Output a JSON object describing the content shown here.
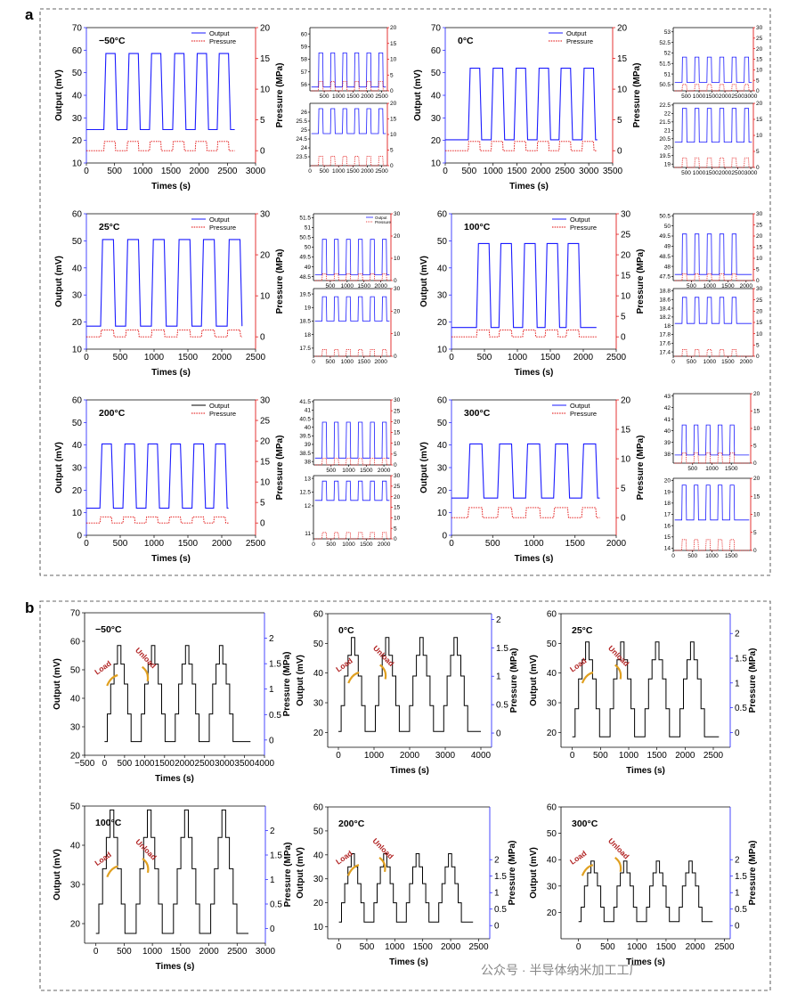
{
  "figure": {
    "panel_labels": [
      "a",
      "b"
    ],
    "watermark": "公众号 · 半导体纳米加工工厂"
  },
  "chart_data": [
    {
      "id": "a-n50",
      "type": "line",
      "title": "−50°C",
      "xlabel": "Times (s)",
      "ylabel": "Output (mV)",
      "y2label": "Pressure (MPa)",
      "xlim": [
        0,
        3000
      ],
      "xticks": [
        0,
        500,
        1000,
        1500,
        2000,
        2500,
        3000
      ],
      "ylim": [
        10,
        70
      ],
      "yticks": [
        10,
        20,
        30,
        40,
        50,
        60,
        70
      ],
      "y2lim": [
        -2,
        20
      ],
      "y2ticks": [
        0,
        5,
        10,
        15,
        20
      ],
      "legend": [
        "Output",
        "Pressure"
      ],
      "output_low": 24.8,
      "output_high": 58.5,
      "pressure_high": 1.5,
      "pulses_start": [
        310,
        720,
        1120,
        1530,
        1930,
        2320
      ],
      "pulse_width": 200,
      "series_end": 2630
    },
    {
      "id": "a-0",
      "type": "line",
      "title": "0°C",
      "xlabel": "Times (s)",
      "ylabel": "Output (mV)",
      "y2label": "Pressure (MPa)",
      "xlim": [
        0,
        3500
      ],
      "xticks": [
        0,
        500,
        1000,
        1500,
        2000,
        2500,
        3000,
        3500
      ],
      "ylim": [
        10,
        70
      ],
      "yticks": [
        10,
        20,
        30,
        40,
        50,
        60,
        70
      ],
      "y2lim": [
        -2,
        20
      ],
      "y2ticks": [
        0,
        5,
        10,
        15,
        20
      ],
      "legend": [
        "Output",
        "Pressure"
      ],
      "output_low": 20.3,
      "output_high": 52.0,
      "pressure_high": 1.5,
      "pulses_start": [
        480,
        960,
        1440,
        1920,
        2380,
        2860
      ],
      "pulse_width": 240,
      "series_end": 3180
    },
    {
      "id": "a-25",
      "type": "line",
      "title": "25°C",
      "xlabel": "Times (s)",
      "ylabel": "Output (mV)",
      "y2label": "Pressure (MPa)",
      "xlim": [
        0,
        2500
      ],
      "xticks": [
        0,
        500,
        1000,
        1500,
        2000,
        2500
      ],
      "ylim": [
        10,
        60
      ],
      "yticks": [
        10,
        20,
        30,
        40,
        50,
        60
      ],
      "y2lim": [
        -3,
        30
      ],
      "y2ticks": [
        0,
        10,
        20,
        30
      ],
      "legend": [
        "Output",
        "Pressure"
      ],
      "output_low": 18.5,
      "output_high": 50.5,
      "pressure_high": 1.7,
      "pulses_start": [
        210,
        580,
        960,
        1340,
        1700,
        2080
      ],
      "pulse_width": 190,
      "series_end": 2300
    },
    {
      "id": "a-100",
      "type": "line",
      "title": "100°C",
      "xlabel": "Times (s)",
      "ylabel": "Output (mV)",
      "y2label": "Pressure (MPa)",
      "xlim": [
        0,
        2500
      ],
      "xticks": [
        0,
        500,
        1000,
        1500,
        2000,
        2500
      ],
      "ylim": [
        10,
        60
      ],
      "yticks": [
        10,
        20,
        30,
        40,
        50,
        60
      ],
      "y2lim": [
        -3,
        30
      ],
      "y2ticks": [
        0,
        5,
        10,
        15,
        20,
        25,
        30
      ],
      "legend": [
        "Output",
        "Pressure"
      ],
      "output_low": 18.0,
      "output_high": 49.0,
      "pressure_high": 1.7,
      "pulses_start": [
        380,
        720,
        1080,
        1420,
        1740
      ],
      "pulse_width": 190,
      "series_end": 2200
    },
    {
      "id": "a-200",
      "type": "line",
      "title": "200°C",
      "xlabel": "Times (s)",
      "ylabel": "Output (mV)",
      "y2label": "Pressure (MPa)",
      "xlim": [
        0,
        2500
      ],
      "xticks": [
        0,
        500,
        1000,
        1500,
        2000,
        2500
      ],
      "ylim": [
        0,
        60
      ],
      "yticks": [
        0,
        10,
        20,
        30,
        40,
        50,
        60
      ],
      "y2lim": [
        -3,
        30
      ],
      "y2ticks": [
        0,
        5,
        10,
        15,
        20,
        25,
        30
      ],
      "legend": [
        "Output",
        "Pressure"
      ],
      "output_low": 12.0,
      "output_high": 40.5,
      "pressure_high": 1.5,
      "pulses_start": [
        200,
        540,
        880,
        1220,
        1560,
        1880
      ],
      "pulse_width": 170,
      "series_end": 2100
    },
    {
      "id": "a-300",
      "type": "line",
      "title": "300°C",
      "xlabel": "Times (s)",
      "ylabel": "Output (mV)",
      "y2label": "Pressure (MPa)",
      "xlim": [
        0,
        2000
      ],
      "xticks": [
        0,
        500,
        1000,
        1500,
        2000
      ],
      "ylim": [
        0,
        60
      ],
      "yticks": [
        0,
        10,
        20,
        30,
        40,
        50,
        60
      ],
      "y2lim": [
        -3,
        20
      ],
      "y2ticks": [
        0,
        5,
        10,
        15,
        20
      ],
      "legend": [
        "Output",
        "Pressure"
      ],
      "output_low": 16.5,
      "output_high": 40.5,
      "pressure_high": 1.7,
      "pulses_start": [
        200,
        560,
        900,
        1240,
        1580
      ],
      "pulse_width": 170,
      "series_end": 1800
    },
    {
      "id": "a-n50-zh",
      "type": "line",
      "xlim": [
        0,
        2700
      ],
      "xticks": [
        500,
        1000,
        1500,
        2000,
        2500
      ],
      "ylim": [
        55.5,
        60.5
      ],
      "yticks": [
        56,
        57,
        58,
        59,
        60
      ],
      "y2lim": [
        0,
        20
      ],
      "y2ticks": [
        0,
        5,
        10,
        15,
        20
      ],
      "output_low": 55.8,
      "output_high": 58.5
    },
    {
      "id": "a-n50-zl",
      "type": "line",
      "xlim": [
        0,
        2700
      ],
      "xticks": [
        0,
        500,
        1000,
        1500,
        2000,
        2500
      ],
      "ylim": [
        23,
        26.5
      ],
      "yticks": [
        23.5,
        24.0,
        24.5,
        25.0,
        25.5,
        26.0
      ],
      "y2lim": [
        0,
        20
      ],
      "y2ticks": [
        0,
        5,
        10,
        15,
        20
      ],
      "output_low": 24.8,
      "output_high": 26.2
    },
    {
      "id": "a-0-zh",
      "type": "line",
      "xlim": [
        0,
        3100
      ],
      "xticks": [
        500,
        1000,
        1500,
        2000,
        2500,
        3000
      ],
      "ylim": [
        50.2,
        53.2
      ],
      "yticks": [
        50.5,
        51.0,
        51.5,
        52.0,
        52.5,
        53.0
      ],
      "y2lim": [
        0,
        30
      ],
      "y2ticks": [
        0,
        5,
        10,
        15,
        20,
        25,
        30
      ],
      "output_low": 50.6,
      "output_high": 51.8
    },
    {
      "id": "a-0-zl",
      "type": "line",
      "xlim": [
        0,
        3100
      ],
      "xticks": [
        500,
        1000,
        1500,
        2000,
        2500,
        3000
      ],
      "ylim": [
        18.8,
        22.6
      ],
      "yticks": [
        19.0,
        19.5,
        20.0,
        20.5,
        21.0,
        21.5,
        22.0,
        22.5
      ],
      "y2lim": [
        0,
        20
      ],
      "y2ticks": [
        0,
        5,
        10,
        15,
        20
      ],
      "output_low": 20.3,
      "output_high": 22.3
    },
    {
      "id": "a-25-zh",
      "type": "line",
      "xlim": [
        0,
        2300
      ],
      "xticks": [
        500,
        1000,
        1500,
        2000
      ],
      "ylim": [
        48.3,
        51.7
      ],
      "yticks": [
        48.5,
        49.0,
        49.5,
        50.0,
        50.5,
        51.0,
        51.5
      ],
      "y2lim": [
        0,
        30
      ],
      "y2ticks": [
        0,
        10,
        20,
        30
      ],
      "output_low": 48.6,
      "output_high": 50.4,
      "legend": [
        "Output",
        "Pressure"
      ]
    },
    {
      "id": "a-25-zl",
      "type": "line",
      "xlim": [
        0,
        2300
      ],
      "xticks": [
        0,
        500,
        1000,
        1500,
        2000
      ],
      "ylim": [
        17.2,
        19.7
      ],
      "yticks": [
        17.5,
        18.0,
        18.5,
        19.0,
        19.5
      ],
      "y2lim": [
        0,
        30
      ],
      "y2ticks": [
        0,
        10,
        20,
        30
      ],
      "output_low": 18.5,
      "output_high": 19.4
    },
    {
      "id": "a-100-zh",
      "type": "line",
      "xlim": [
        0,
        2200
      ],
      "xticks": [
        500,
        1000,
        1500,
        2000
      ],
      "ylim": [
        47.3,
        50.6
      ],
      "yticks": [
        47.5,
        48.0,
        48.5,
        49.0,
        49.5,
        50.0,
        50.5
      ],
      "y2lim": [
        0,
        30
      ],
      "y2ticks": [
        0,
        5,
        10,
        15,
        20,
        25,
        30
      ],
      "output_low": 47.6,
      "output_high": 49.6
    },
    {
      "id": "a-100-zl",
      "type": "line",
      "xlim": [
        0,
        2200
      ],
      "xticks": [
        0,
        500,
        1000,
        1500,
        2000
      ],
      "ylim": [
        17.3,
        18.85
      ],
      "yticks": [
        17.4,
        17.6,
        17.8,
        18.0,
        18.2,
        18.4,
        18.6,
        18.8
      ],
      "y2lim": [
        0,
        30
      ],
      "y2ticks": [
        0,
        5,
        10,
        15,
        20,
        25,
        30
      ],
      "output_low": 18.05,
      "output_high": 18.65
    },
    {
      "id": "a-200-zh",
      "type": "line",
      "xlim": [
        0,
        2200
      ],
      "xticks": [
        500,
        1000,
        1500,
        2000
      ],
      "ylim": [
        37.8,
        41.6
      ],
      "yticks": [
        38.0,
        38.5,
        39.0,
        39.5,
        40.0,
        40.5,
        41.0,
        41.5
      ],
      "y2lim": [
        0,
        30
      ],
      "y2ticks": [
        0,
        5,
        10,
        15,
        20,
        25,
        30
      ],
      "output_low": 38.2,
      "output_high": 40.3
    },
    {
      "id": "a-200-zl",
      "type": "line",
      "xlim": [
        0,
        2200
      ],
      "xticks": [
        0,
        500,
        1000,
        1500,
        2000
      ],
      "ylim": [
        10.8,
        13.1
      ],
      "yticks": [
        11.0,
        12.0,
        12.5,
        13.0
      ],
      "y2lim": [
        0,
        30
      ],
      "y2ticks": [
        0,
        5,
        10,
        15,
        20,
        25,
        30
      ],
      "output_low": 12.2,
      "output_high": 12.9
    },
    {
      "id": "a-300-zh",
      "type": "line",
      "xlim": [
        0,
        2000
      ],
      "xticks": [
        500,
        1000,
        1500
      ],
      "ylim": [
        37.2,
        43.2
      ],
      "yticks": [
        38,
        39,
        40,
        41,
        42,
        43
      ],
      "y2lim": [
        0,
        20
      ],
      "y2ticks": [
        0,
        5,
        10,
        15,
        20
      ],
      "output_low": 37.9,
      "output_high": 40.5
    },
    {
      "id": "a-300-zl",
      "type": "line",
      "xlim": [
        0,
        2000
      ],
      "xticks": [
        0,
        500,
        1000,
        1500
      ],
      "ylim": [
        13.8,
        20.2
      ],
      "yticks": [
        14,
        15,
        16,
        17,
        18,
        19,
        20
      ],
      "y2lim": [
        0,
        20
      ],
      "y2ticks": [
        0,
        5,
        10,
        15,
        20
      ],
      "output_low": 16.5,
      "output_high": 19.6
    },
    {
      "id": "b-n50",
      "type": "line",
      "title": "−50°C",
      "xlabel": "Times (s)",
      "ylabel": "Output (mV)",
      "y2label": "Pressure (MPa)",
      "xlim": [
        -500,
        4000
      ],
      "xticks": [
        -500,
        0,
        500,
        1000,
        1500,
        2000,
        2500,
        3000,
        3500,
        4000
      ],
      "xtick_labels": [
        "−500",
        "0",
        "500",
        "1000",
        "1500",
        "2000",
        "2500",
        "3000",
        "3500",
        "4000"
      ],
      "ylim": [
        20,
        70
      ],
      "yticks": [
        20,
        30,
        40,
        50,
        60,
        70
      ],
      "y2lim": [
        -0.3,
        2.5
      ],
      "y2ticks": [
        0,
        0.5,
        1,
        1.5,
        2
      ],
      "steps": [
        24.8,
        34.5,
        45,
        52,
        58.5
      ],
      "cycle_start": 0,
      "cycle_period": 850,
      "cycles": 4,
      "series_end": 3650,
      "annotations": [
        "Load",
        "Unload"
      ]
    },
    {
      "id": "b-0",
      "type": "line",
      "title": "0°C",
      "xlabel": "Times (s)",
      "ylabel": "Output (mV)",
      "y2label": "Pressure (MPa)",
      "xlim": [
        -300,
        4300
      ],
      "xticks": [
        0,
        1000,
        2000,
        3000,
        4000
      ],
      "ylim": [
        15,
        60
      ],
      "yticks": [
        20,
        30,
        40,
        50,
        60
      ],
      "y2lim": [
        -0.25,
        2.1
      ],
      "y2ticks": [
        0,
        0.5,
        1,
        1.5,
        2
      ],
      "steps": [
        20.3,
        29,
        39,
        46,
        52
      ],
      "cycle_start": 0,
      "cycle_period": 960,
      "cycles": 4,
      "series_end": 4000,
      "annotations": [
        "Load",
        "Unload"
      ]
    },
    {
      "id": "b-25",
      "type": "line",
      "title": "25°C",
      "xlabel": "Times (s)",
      "ylabel": "Output (mV)",
      "y2label": "Pressure (MPa)",
      "xlim": [
        -200,
        2800
      ],
      "xticks": [
        0,
        500,
        1000,
        1500,
        2000,
        2500
      ],
      "ylim": [
        15,
        60
      ],
      "yticks": [
        20,
        30,
        40,
        50,
        60
      ],
      "y2lim": [
        -0.3,
        2.4
      ],
      "y2ticks": [
        0,
        0.5,
        1,
        1.5,
        2
      ],
      "steps": [
        18.5,
        28,
        38,
        44.5,
        50.5
      ],
      "cycle_start": 0,
      "cycle_period": 620,
      "cycles": 4,
      "series_end": 2600,
      "annotations": [
        "Load",
        "Unload"
      ]
    },
    {
      "id": "b-100",
      "type": "line",
      "title": "100°C",
      "xlabel": "Times (s)",
      "ylabel": "Output (mV)",
      "y2label": "Pressure (MPa)",
      "xlim": [
        -200,
        3000
      ],
      "xticks": [
        0,
        500,
        1000,
        1500,
        2000,
        2500,
        3000
      ],
      "ylim": [
        15,
        50
      ],
      "yticks": [
        20,
        30,
        40,
        50
      ],
      "y2lim": [
        -0.3,
        2.5
      ],
      "y2ticks": [
        0,
        0.5,
        1,
        1.5,
        2
      ],
      "steps": [
        17.5,
        25,
        34,
        42,
        49
      ],
      "cycle_start": 0,
      "cycle_period": 660,
      "cycles": 4,
      "series_end": 2700,
      "annotations": [
        "Load",
        "Unload"
      ]
    },
    {
      "id": "b-200",
      "type": "line",
      "title": "200°C",
      "xlabel": "Times (s)",
      "ylabel": "Output (mV)",
      "y2label": "Pressure (MPa)",
      "xlim": [
        -200,
        2700
      ],
      "xticks": [
        0,
        500,
        1000,
        1500,
        2000,
        2500
      ],
      "ylim": [
        5,
        60
      ],
      "yticks": [
        10,
        20,
        30,
        40,
        50,
        60
      ],
      "y2lim": [
        -0.4,
        3.6
      ],
      "y2ticks": [
        0,
        0.5,
        1,
        1.5,
        2
      ],
      "steps": [
        12,
        20,
        28,
        35,
        40.5
      ],
      "cycle_start": 0,
      "cycle_period": 580,
      "cycles": 4,
      "series_end": 2400,
      "annotations": [
        "Load",
        "Unload"
      ]
    },
    {
      "id": "b-300",
      "type": "line",
      "title": "300°C",
      "xlabel": "Times (s)",
      "ylabel": "Output (mV)",
      "y2label": "Pressure (MPa)",
      "xlim": [
        -300,
        2600
      ],
      "xticks": [
        0,
        500,
        1000,
        1500,
        2000,
        2500
      ],
      "ylim": [
        10,
        60
      ],
      "yticks": [
        20,
        30,
        40,
        50,
        60
      ],
      "y2lim": [
        -0.4,
        3.6
      ],
      "y2ticks": [
        0,
        0.5,
        1,
        1.5,
        2
      ],
      "steps": [
        16.5,
        22,
        30,
        35,
        39.5
      ],
      "cycle_start": 0,
      "cycle_period": 560,
      "cycles": 4,
      "series_end": 2300,
      "annotations": [
        "Load",
        "Unload"
      ]
    }
  ]
}
